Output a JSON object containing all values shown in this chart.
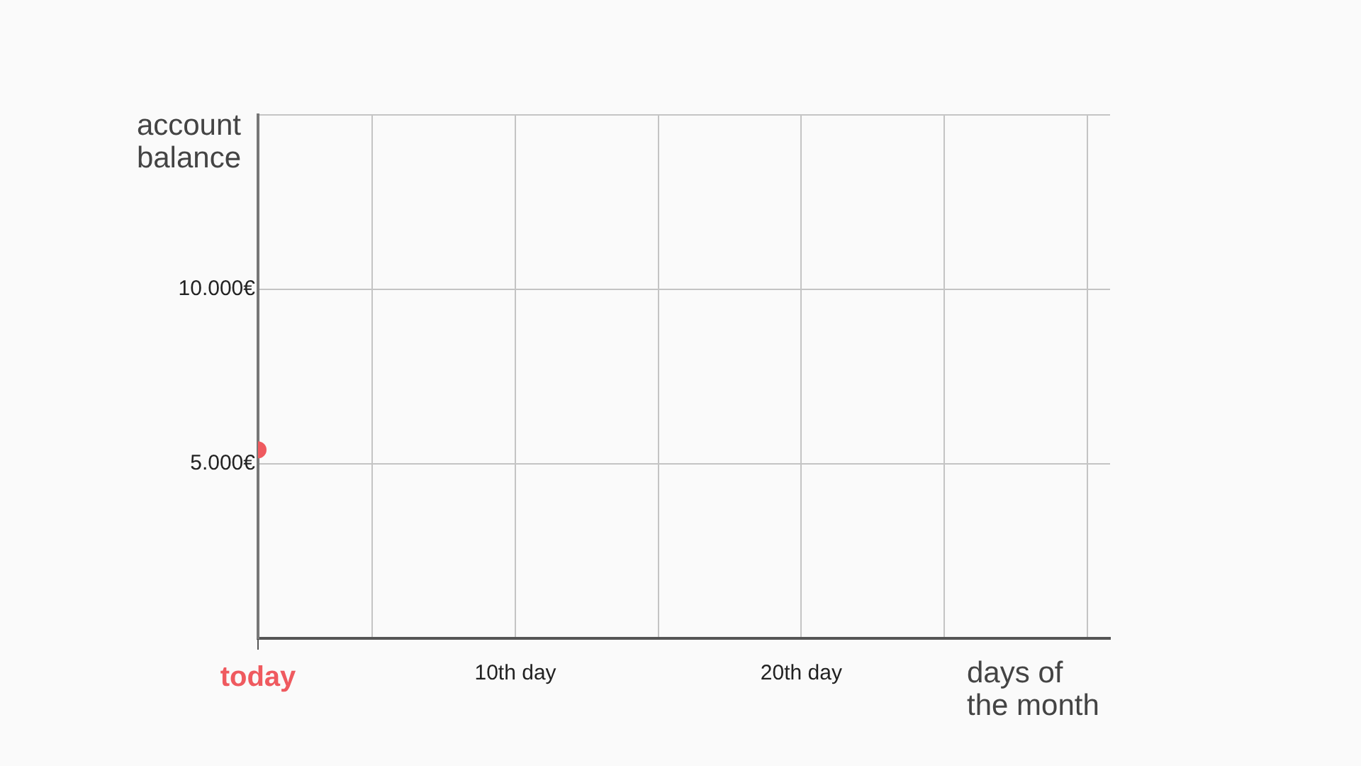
{
  "chart_data": {
    "type": "scatter",
    "xlabel": "days of the month",
    "ylabel": "account balance",
    "series": [
      {
        "color": "#ef5a5f",
        "x": [
          1
        ],
        "values": [
          5400
        ]
      }
    ],
    "xlim": [
      1,
      30.8
    ],
    "xticks": [
      {
        "value": 1,
        "label": "today"
      },
      {
        "value": 5,
        "label": null
      },
      {
        "value": 10,
        "label": "10th day"
      },
      {
        "value": 15,
        "label": null
      },
      {
        "value": 20,
        "label": "20th day"
      },
      {
        "value": 25,
        "label": null
      },
      {
        "value": 30,
        "label": null
      }
    ],
    "ylim": [
      0,
      15000
    ],
    "yticks": [
      {
        "value": 0,
        "label": null
      },
      {
        "value": 5000,
        "label": "5.000€"
      },
      {
        "value": 10000,
        "label": "10.000€"
      },
      {
        "value": 15000,
        "label": null
      }
    ],
    "grid": true,
    "legend": false,
    "marker": "circle"
  }
}
